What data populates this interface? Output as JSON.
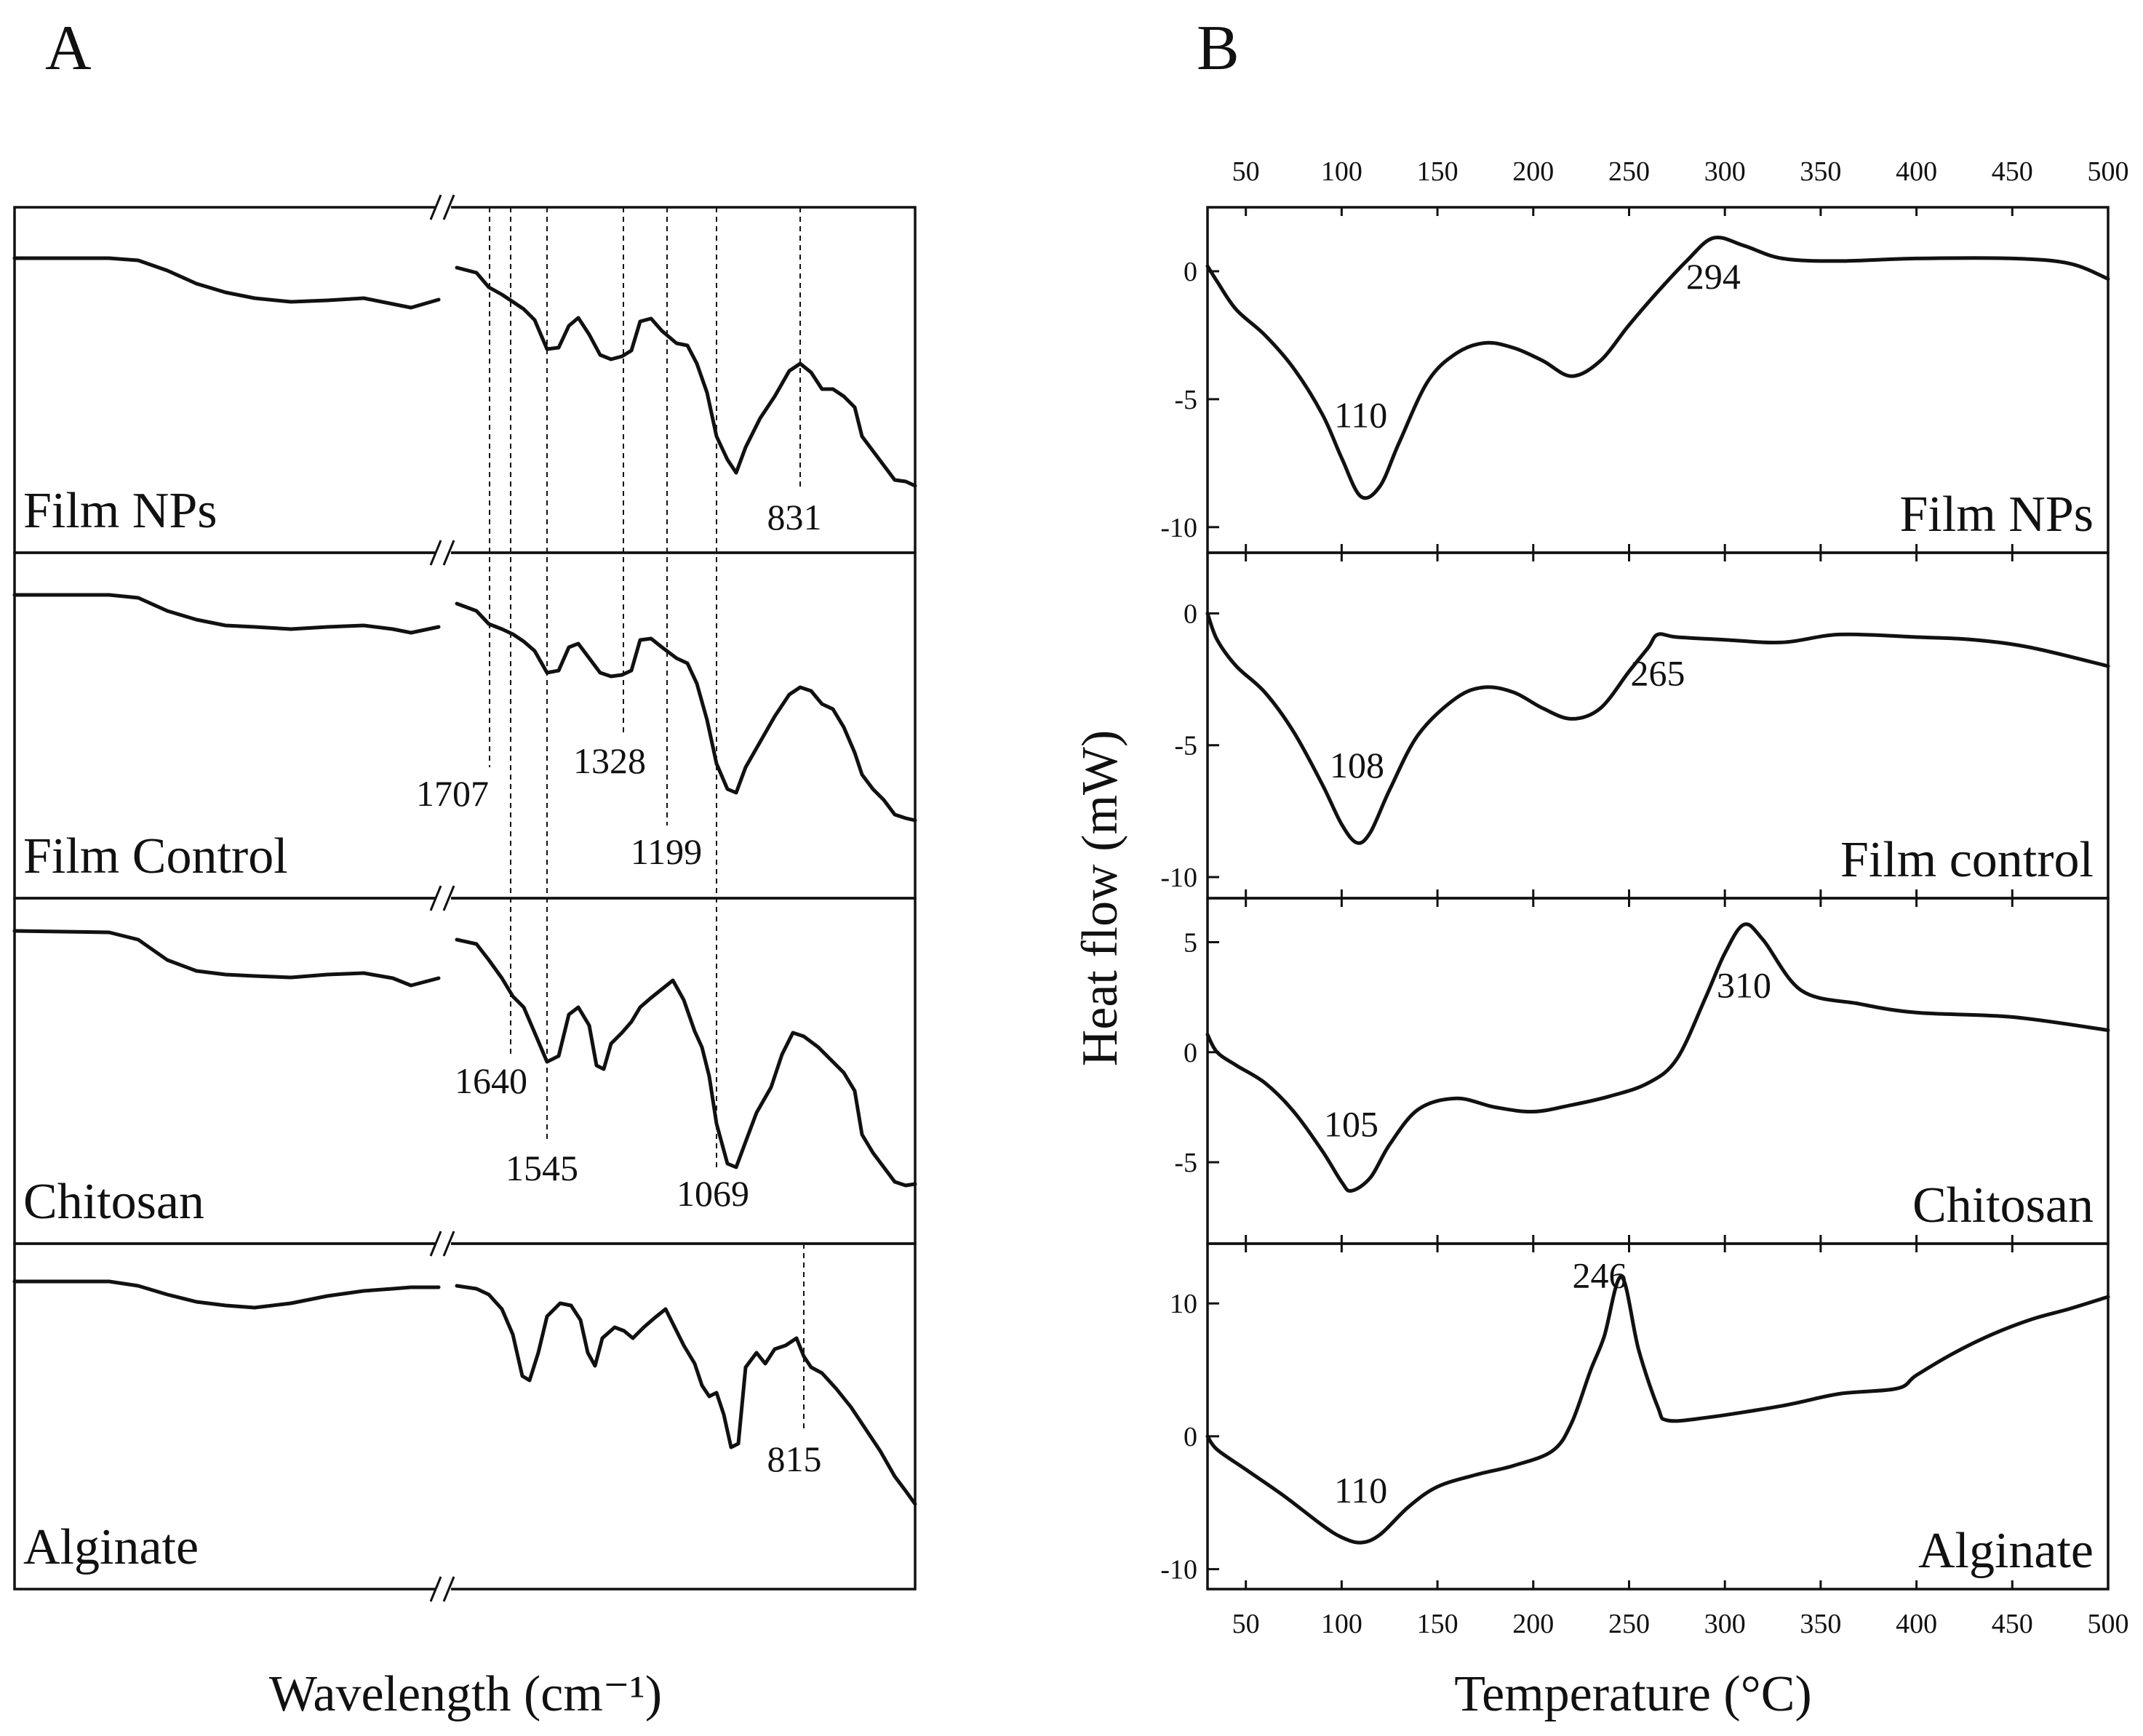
{
  "figure": {
    "panel_a_letter": "A",
    "panel_b_letter": "B",
    "panel_a_xlabel": "Wavelength (cm⁻¹)",
    "panel_b_xlabel": "Temperature (°C)",
    "panel_b_ylabel": "Heat flow (mW)"
  },
  "chart_data": [
    {
      "type": "line",
      "title": "A",
      "xlabel": "Wavelength (cm⁻¹)",
      "ylabel": "",
      "axis_break": "//",
      "series": [
        {
          "name": "Film NPs",
          "label": "Film NPs",
          "peaks": [
            "831"
          ]
        },
        {
          "name": "Film Control",
          "label": "Film Control",
          "peaks": [
            "1707",
            "1328",
            "1199"
          ]
        },
        {
          "name": "Chitosan",
          "label": "Chitosan",
          "peaks": [
            "1640",
            "1545",
            "1069"
          ]
        },
        {
          "name": "Alginate",
          "label": "Alginate",
          "peaks": [
            "815"
          ]
        }
      ]
    },
    {
      "type": "line",
      "title": "B",
      "xlabel": "Temperature (°C)",
      "ylabel": "Heat flow (mW)",
      "xlim": [
        30,
        500
      ],
      "xticks": [
        "50",
        "100",
        "150",
        "200",
        "250",
        "300",
        "350",
        "400",
        "450",
        "500"
      ],
      "series": [
        {
          "name": "Film NPs",
          "label": "Film NPs",
          "ylim": [
            -11,
            2.5
          ],
          "yticks": [
            "0",
            "-5",
            "-10"
          ],
          "peaks": [
            "110",
            "294"
          ],
          "x": [
            30,
            35,
            45,
            60,
            75,
            90,
            100,
            110,
            120,
            130,
            145,
            160,
            175,
            190,
            205,
            220,
            235,
            250,
            265,
            280,
            294,
            310,
            330,
            360,
            400,
            450,
            480,
            500
          ],
          "y": [
            0.2,
            -0.4,
            -1.5,
            -2.5,
            -3.8,
            -5.6,
            -7.3,
            -8.8,
            -8.4,
            -6.7,
            -4.3,
            -3.2,
            -2.8,
            -3.0,
            -3.5,
            -4.1,
            -3.5,
            -2.1,
            -0.8,
            0.4,
            1.3,
            1.0,
            0.5,
            0.4,
            0.5,
            0.5,
            0.3,
            -0.3
          ]
        },
        {
          "name": "Film control",
          "label": "Film control",
          "ylim": [
            -10.8,
            2.3
          ],
          "yticks": [
            "0",
            "-5",
            "-10"
          ],
          "peaks": [
            "108",
            "265"
          ],
          "x": [
            30,
            35,
            45,
            60,
            75,
            90,
            100,
            108,
            115,
            125,
            140,
            160,
            175,
            190,
            205,
            220,
            235,
            250,
            260,
            265,
            275,
            300,
            330,
            360,
            400,
            430,
            460,
            500
          ],
          "y": [
            0.0,
            -1.0,
            -2.0,
            -3.0,
            -4.5,
            -6.5,
            -8.0,
            -8.7,
            -8.3,
            -6.7,
            -4.6,
            -3.2,
            -2.8,
            -3.0,
            -3.6,
            -4.0,
            -3.6,
            -2.2,
            -1.3,
            -0.8,
            -0.9,
            -1.0,
            -1.1,
            -0.8,
            -0.9,
            -1.0,
            -1.3,
            -2.0
          ]
        },
        {
          "name": "Chitosan",
          "label": "Chitosan",
          "ylim": [
            -8.7,
            7.0
          ],
          "yticks": [
            "5",
            "0",
            "-5"
          ],
          "peaks": [
            "105",
            "310"
          ],
          "x": [
            30,
            35,
            45,
            60,
            75,
            90,
            100,
            105,
            115,
            125,
            140,
            160,
            180,
            200,
            220,
            240,
            260,
            275,
            290,
            300,
            310,
            320,
            340,
            370,
            400,
            450,
            500
          ],
          "y": [
            0.8,
            0.0,
            -0.6,
            -1.4,
            -2.7,
            -4.5,
            -5.9,
            -6.3,
            -5.7,
            -4.2,
            -2.6,
            -2.1,
            -2.5,
            -2.7,
            -2.4,
            -2.0,
            -1.4,
            -0.3,
            2.5,
            4.5,
            5.8,
            5.1,
            2.8,
            2.2,
            1.8,
            1.6,
            1.0
          ]
        },
        {
          "name": "Alginate",
          "label": "Alginate",
          "ylim": [
            -11.5,
            14.5
          ],
          "yticks": [
            "10",
            "0",
            "-10"
          ],
          "peaks": [
            "110",
            "246"
          ],
          "x": [
            30,
            35,
            50,
            70,
            90,
            100,
            110,
            120,
            135,
            150,
            170,
            190,
            210,
            220,
            230,
            237,
            246,
            255,
            265,
            270,
            290,
            330,
            360,
            390,
            400,
            420,
            440,
            460,
            480,
            500
          ],
          "y": [
            0.0,
            -1.0,
            -2.5,
            -4.5,
            -6.7,
            -7.6,
            -8.0,
            -7.4,
            -5.3,
            -3.8,
            -2.9,
            -2.2,
            -1.1,
            1.0,
            5.0,
            7.5,
            12.0,
            6.5,
            2.2,
            1.2,
            1.4,
            2.3,
            3.2,
            3.6,
            4.6,
            6.3,
            7.7,
            8.8,
            9.6,
            10.5
          ]
        }
      ]
    }
  ]
}
